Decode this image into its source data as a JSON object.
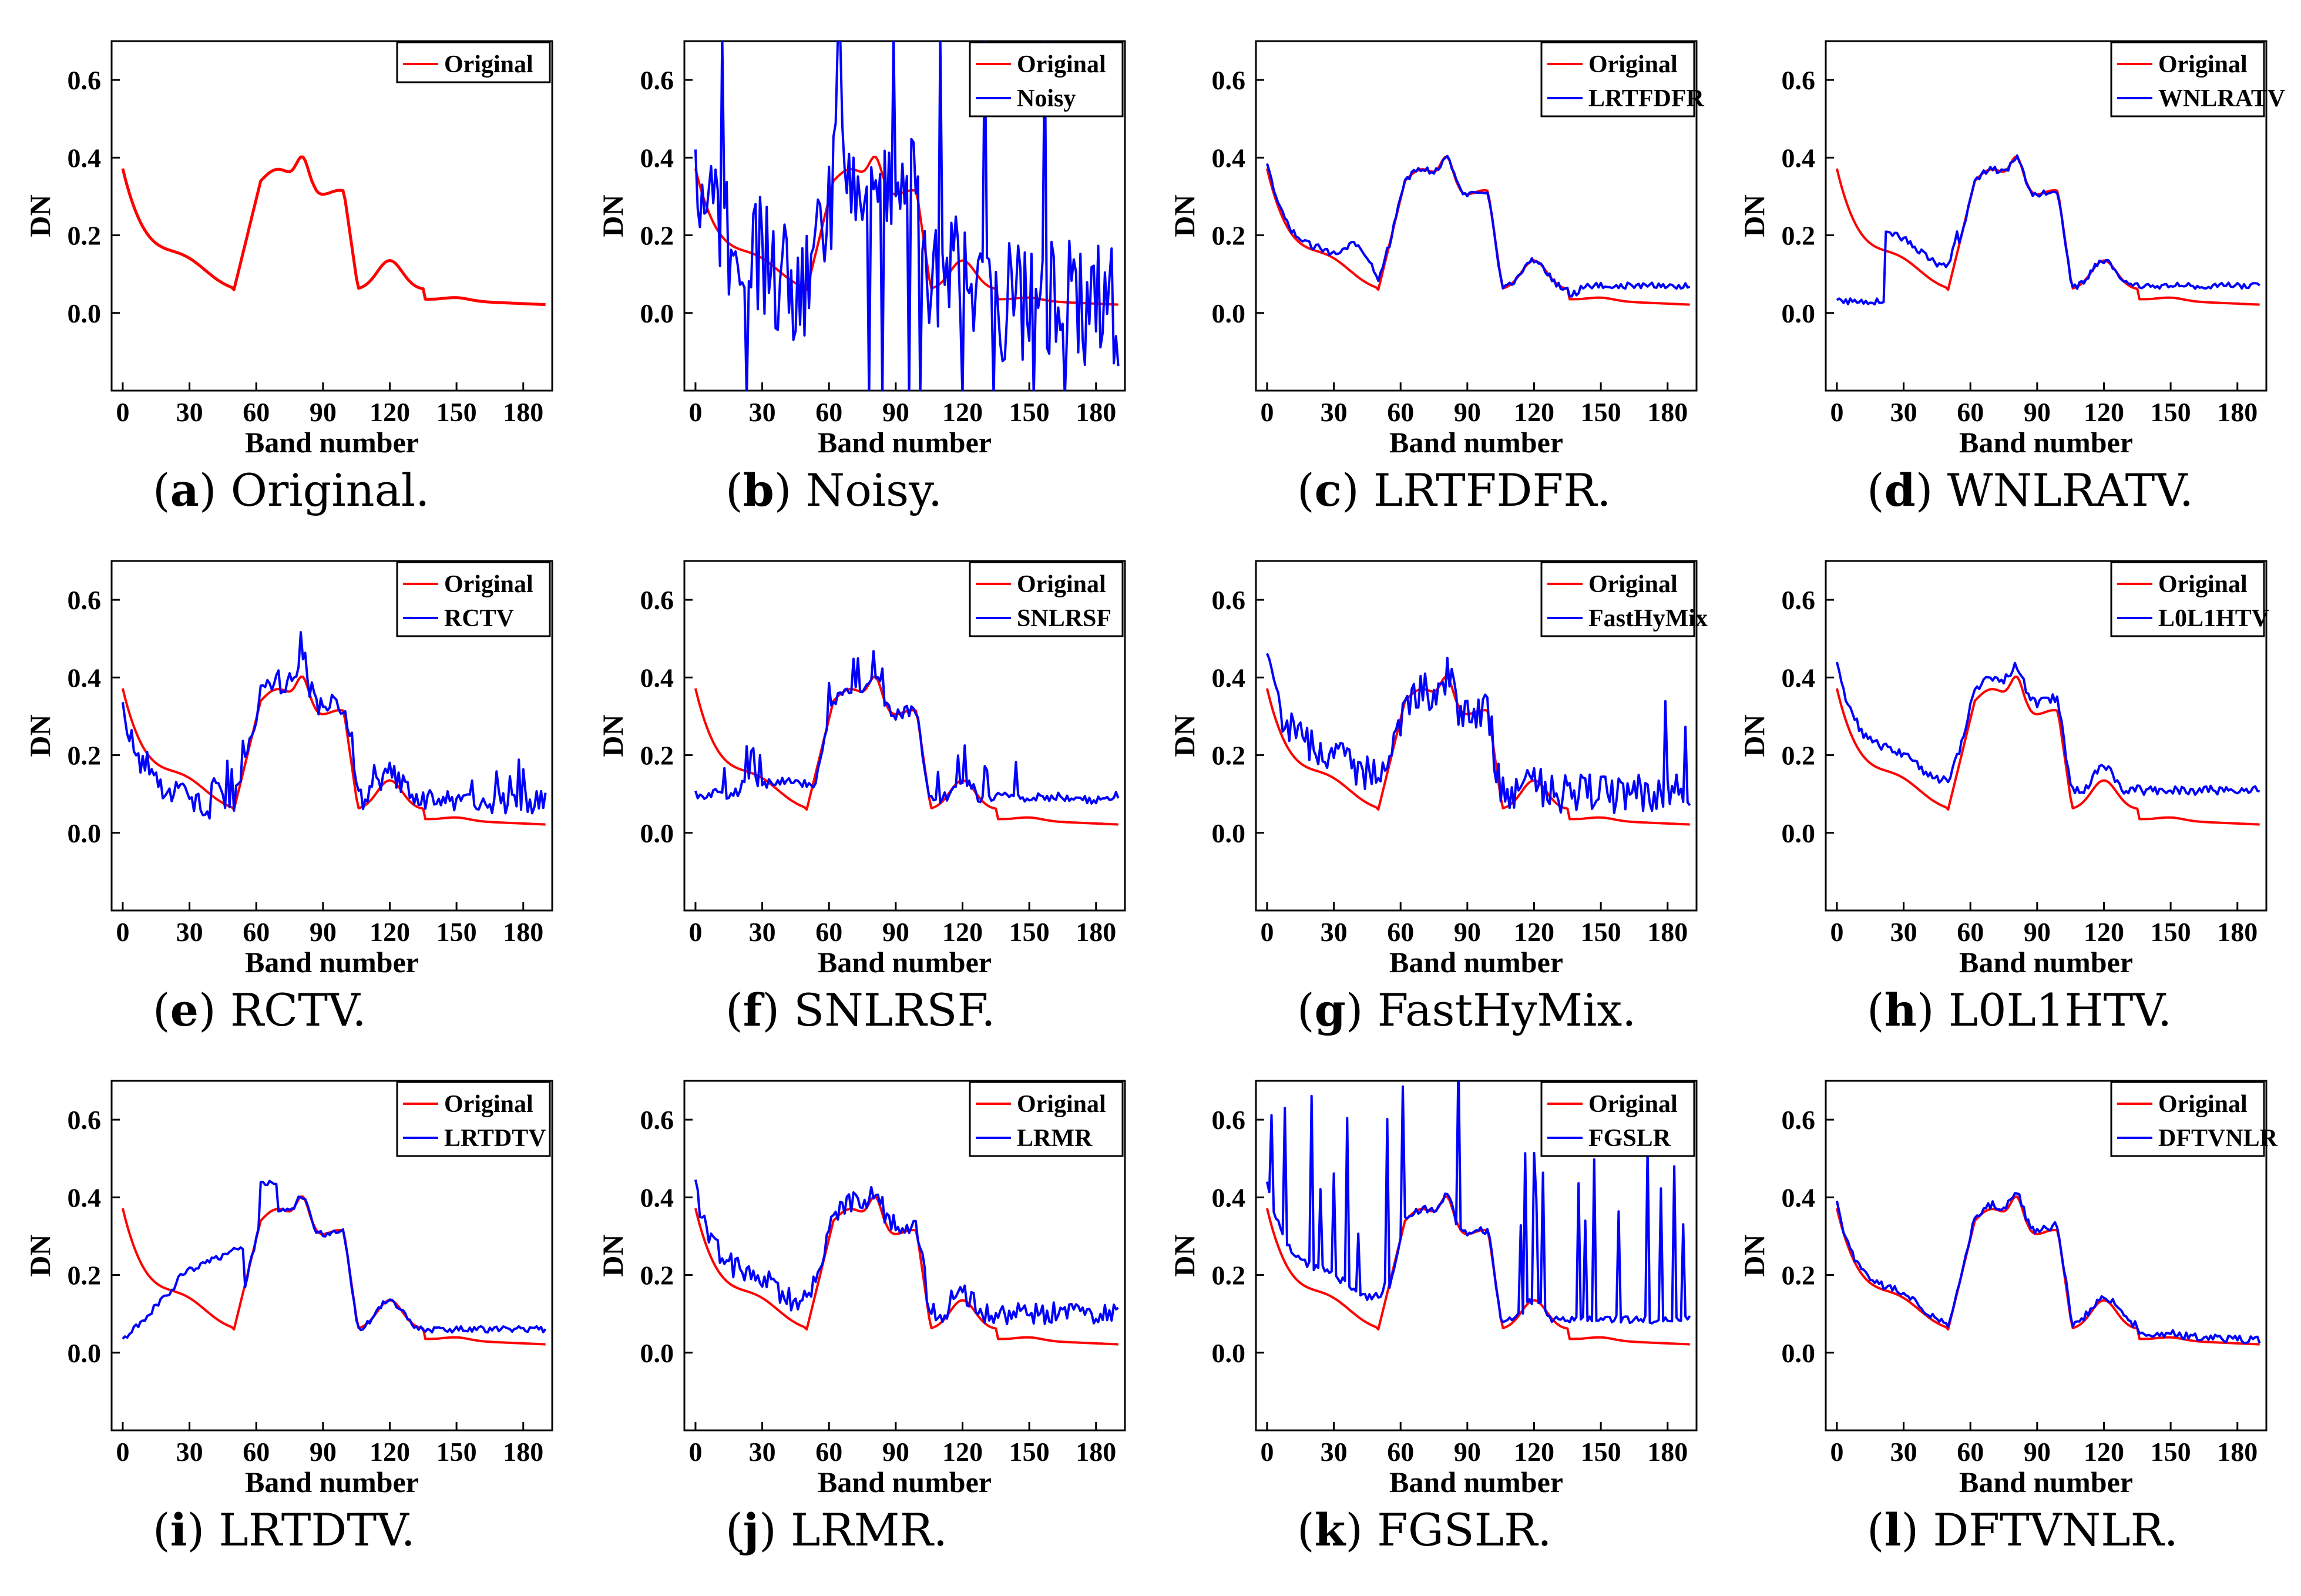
{
  "figure": {
    "colors": {
      "original": "#ff0000",
      "method": "#0000ff",
      "axis": "#000000"
    }
  },
  "chart_data": [
    {
      "type": "line",
      "panel_label": "a",
      "caption": "Original.",
      "xlabel": "Band number",
      "ylabel": "DN",
      "xticks": [
        0,
        30,
        60,
        90,
        120,
        150,
        180
      ],
      "yticks": [
        "0.0",
        "0.2",
        "0.4",
        "0.6"
      ],
      "xlim": [
        -5,
        193
      ],
      "ylim": [
        -0.2,
        0.7
      ],
      "series": [
        {
          "name": "Original",
          "color": "#ff0000"
        }
      ]
    },
    {
      "type": "line",
      "panel_label": "b",
      "caption": "Noisy.",
      "xlabel": "Band number",
      "ylabel": "DN",
      "xticks": [
        0,
        30,
        60,
        90,
        120,
        150,
        180
      ],
      "yticks": [
        "0.0",
        "0.2",
        "0.4",
        "0.6"
      ],
      "xlim": [
        -5,
        193
      ],
      "ylim": [
        -0.2,
        0.7
      ],
      "series": [
        {
          "name": "Original",
          "color": "#ff0000"
        },
        {
          "name": "Noisy",
          "color": "#0000ff"
        }
      ]
    },
    {
      "type": "line",
      "panel_label": "c",
      "caption": "LRTFDFR.",
      "xlabel": "Band number",
      "ylabel": "DN",
      "xticks": [
        0,
        30,
        60,
        90,
        120,
        150,
        180
      ],
      "yticks": [
        "0.0",
        "0.2",
        "0.4",
        "0.6"
      ],
      "xlim": [
        -5,
        193
      ],
      "ylim": [
        -0.2,
        0.7
      ],
      "series": [
        {
          "name": "Original",
          "color": "#ff0000"
        },
        {
          "name": "LRTFDFR",
          "color": "#0000ff"
        }
      ]
    },
    {
      "type": "line",
      "panel_label": "d",
      "caption": "WNLRATV.",
      "xlabel": "Band number",
      "ylabel": "DN",
      "xticks": [
        0,
        30,
        60,
        90,
        120,
        150,
        180
      ],
      "yticks": [
        "0.0",
        "0.2",
        "0.4",
        "0.6"
      ],
      "xlim": [
        -5,
        193
      ],
      "ylim": [
        -0.2,
        0.7
      ],
      "series": [
        {
          "name": "Original",
          "color": "#ff0000"
        },
        {
          "name": "WNLRATV",
          "color": "#0000ff"
        }
      ]
    },
    {
      "type": "line",
      "panel_label": "e",
      "caption": "RCTV.",
      "xlabel": "Band number",
      "ylabel": "DN",
      "xticks": [
        0,
        30,
        60,
        90,
        120,
        150,
        180
      ],
      "yticks": [
        "0.0",
        "0.2",
        "0.4",
        "0.6"
      ],
      "xlim": [
        -5,
        193
      ],
      "ylim": [
        -0.2,
        0.7
      ],
      "series": [
        {
          "name": "Original",
          "color": "#ff0000"
        },
        {
          "name": "RCTV",
          "color": "#0000ff"
        }
      ]
    },
    {
      "type": "line",
      "panel_label": "f",
      "caption": "SNLRSF.",
      "xlabel": "Band number",
      "ylabel": "DN",
      "xticks": [
        0,
        30,
        60,
        90,
        120,
        150,
        180
      ],
      "yticks": [
        "0.0",
        "0.2",
        "0.4",
        "0.6"
      ],
      "xlim": [
        -5,
        193
      ],
      "ylim": [
        -0.2,
        0.7
      ],
      "series": [
        {
          "name": "Original",
          "color": "#ff0000"
        },
        {
          "name": "SNLRSF",
          "color": "#0000ff"
        }
      ]
    },
    {
      "type": "line",
      "panel_label": "g",
      "caption": "FastHyMix.",
      "xlabel": "Band number",
      "ylabel": "DN",
      "xticks": [
        0,
        30,
        60,
        90,
        120,
        150,
        180
      ],
      "yticks": [
        "0.0",
        "0.2",
        "0.4",
        "0.6"
      ],
      "xlim": [
        -5,
        193
      ],
      "ylim": [
        -0.2,
        0.7
      ],
      "series": [
        {
          "name": "Original",
          "color": "#ff0000"
        },
        {
          "name": "FastHyMix",
          "color": "#0000ff"
        }
      ]
    },
    {
      "type": "line",
      "panel_label": "h",
      "caption": "L0L1HTV.",
      "xlabel": "Band number",
      "ylabel": "DN",
      "xticks": [
        0,
        30,
        60,
        90,
        120,
        150,
        180
      ],
      "yticks": [
        "0.0",
        "0.2",
        "0.4",
        "0.6"
      ],
      "xlim": [
        -5,
        193
      ],
      "ylim": [
        -0.2,
        0.7
      ],
      "series": [
        {
          "name": "Original",
          "color": "#ff0000"
        },
        {
          "name": "L0L1HTV",
          "color": "#0000ff"
        }
      ]
    },
    {
      "type": "line",
      "panel_label": "i",
      "caption": "LRTDTV.",
      "xlabel": "Band number",
      "ylabel": "DN",
      "xticks": [
        0,
        30,
        60,
        90,
        120,
        150,
        180
      ],
      "yticks": [
        "0.0",
        "0.2",
        "0.4",
        "0.6"
      ],
      "xlim": [
        -5,
        193
      ],
      "ylim": [
        -0.2,
        0.7
      ],
      "series": [
        {
          "name": "Original",
          "color": "#ff0000"
        },
        {
          "name": "LRTDTV",
          "color": "#0000ff"
        }
      ]
    },
    {
      "type": "line",
      "panel_label": "j",
      "caption": "LRMR.",
      "xlabel": "Band number",
      "ylabel": "DN",
      "xticks": [
        0,
        30,
        60,
        90,
        120,
        150,
        180
      ],
      "yticks": [
        "0.0",
        "0.2",
        "0.4",
        "0.6"
      ],
      "xlim": [
        -5,
        193
      ],
      "ylim": [
        -0.2,
        0.7
      ],
      "series": [
        {
          "name": "Original",
          "color": "#ff0000"
        },
        {
          "name": "LRMR",
          "color": "#0000ff"
        }
      ]
    },
    {
      "type": "line",
      "panel_label": "k",
      "caption": "FGSLR.",
      "xlabel": "Band number",
      "ylabel": "DN",
      "xticks": [
        0,
        30,
        60,
        90,
        120,
        150,
        180
      ],
      "yticks": [
        "0.0",
        "0.2",
        "0.4",
        "0.6"
      ],
      "xlim": [
        -5,
        193
      ],
      "ylim": [
        -0.2,
        0.7
      ],
      "series": [
        {
          "name": "Original",
          "color": "#ff0000"
        },
        {
          "name": "FGSLR",
          "color": "#0000ff"
        }
      ]
    },
    {
      "type": "line",
      "panel_label": "l",
      "caption": "DFTVNLR.",
      "xlabel": "Band number",
      "ylabel": "DN",
      "xticks": [
        0,
        30,
        60,
        90,
        120,
        150,
        180
      ],
      "yticks": [
        "0.0",
        "0.2",
        "0.4",
        "0.6"
      ],
      "xlim": [
        -5,
        193
      ],
      "ylim": [
        -0.2,
        0.7
      ],
      "series": [
        {
          "name": "Original",
          "color": "#ff0000"
        },
        {
          "name": "DFTVNLR",
          "color": "#0000ff"
        }
      ]
    }
  ]
}
